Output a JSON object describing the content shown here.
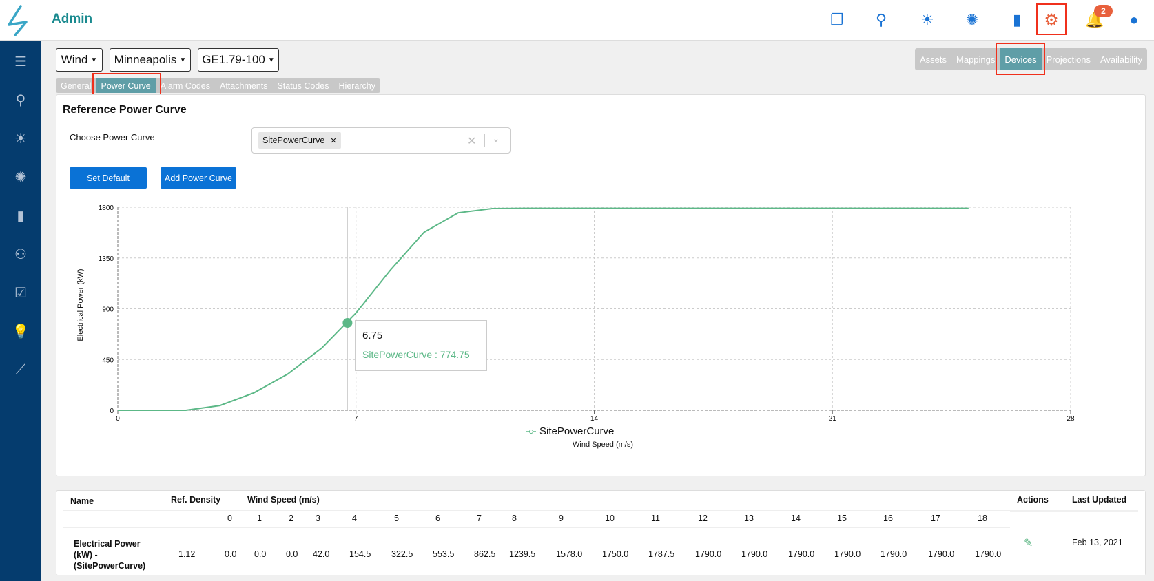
{
  "header": {
    "title": "Admin",
    "notification_count": "2"
  },
  "top_icons": [
    "documents-icon",
    "wind-turbine-icon",
    "solar-icon",
    "solar-water-icon",
    "battery-storage-icon",
    "gear-icon",
    "bell-icon",
    "user-icon"
  ],
  "sidebar_icons": [
    "menu-icon",
    "wind-turbine-icon",
    "solar-icon",
    "solar-water-icon",
    "battery-storage-icon",
    "user-settings-icon",
    "checkbox-icon",
    "lightbulb-icon",
    "analytics-icon"
  ],
  "filters": {
    "type": "Wind",
    "site": "Minneapolis",
    "model": "GE1.79-100"
  },
  "sub_tabs": [
    {
      "label": "General"
    },
    {
      "label": "Power Curve",
      "active": true
    },
    {
      "label": "Alarm Codes"
    },
    {
      "label": "Attachments"
    },
    {
      "label": "Status Codes"
    },
    {
      "label": "Hierarchy"
    }
  ],
  "main_tabs": [
    {
      "label": "Assets"
    },
    {
      "label": "Mappings"
    },
    {
      "label": "Devices",
      "active": true
    },
    {
      "label": "Projections"
    },
    {
      "label": "Availability"
    }
  ],
  "panel": {
    "title": "Reference Power Curve",
    "choose_label": "Choose Power Curve",
    "selected_chip": "SitePowerCurve",
    "set_default": "Set Default",
    "add_curve": "Add Power Curve"
  },
  "colors": {
    "accent": "#0a72d6",
    "series": "#5cb887",
    "active_tab": "#5f9ea7",
    "highlight": "#f0301c",
    "sidebar": "#053c6e"
  },
  "chart_data": {
    "type": "line",
    "xlabel": "Wind Speed (m/s)",
    "ylabel": "Electrical Power (kW)",
    "xlim": [
      0,
      28
    ],
    "ylim": [
      0,
      1800
    ],
    "xticks": [
      "0",
      "7",
      "14",
      "21",
      "28"
    ],
    "yticks": [
      "0",
      "450",
      "900",
      "1350",
      "1800"
    ],
    "grid": true,
    "legend": "bottom",
    "series": [
      {
        "name": "SitePowerCurve",
        "x": [
          0,
          1,
          2,
          3,
          4,
          5,
          6,
          7,
          8,
          9,
          10,
          11,
          12,
          13,
          14,
          15,
          16,
          17,
          18,
          19,
          20,
          21,
          22,
          23,
          24,
          25
        ],
        "y": [
          0,
          0,
          0,
          42,
          154.5,
          322.5,
          553.5,
          862.5,
          1239.5,
          1578,
          1750,
          1787.5,
          1790,
          1790,
          1790,
          1790,
          1790,
          1790,
          1790,
          1790,
          1790,
          1790,
          1790,
          1790,
          1790,
          1790
        ]
      }
    ],
    "tooltip": {
      "x": "6.75",
      "label": "SitePowerCurve : 774.75",
      "y": 774.75
    }
  },
  "table": {
    "headers": {
      "name": "Name",
      "density": "Ref. Density",
      "wind": "Wind Speed (m/s)",
      "actions": "Actions",
      "updated": "Last Updated"
    },
    "speeds": [
      "0",
      "1",
      "2",
      "3",
      "4",
      "5",
      "6",
      "7",
      "8",
      "9",
      "10",
      "11",
      "12",
      "13",
      "14",
      "15",
      "16",
      "17",
      "18"
    ],
    "rows": [
      {
        "name": [
          "Electrical Power",
          "(kW) -",
          "(SitePowerCurve)"
        ],
        "density": "1.12",
        "values": [
          "0.0",
          "0.0",
          "0.0",
          "42.0",
          "154.5",
          "322.5",
          "553.5",
          "862.5",
          "1239.5",
          "1578.0",
          "1750.0",
          "1787.5",
          "1790.0",
          "1790.0",
          "1790.0",
          "1790.0",
          "1790.0",
          "1790.0",
          "1790.0"
        ],
        "updated": "Feb 13, 2021"
      }
    ]
  }
}
